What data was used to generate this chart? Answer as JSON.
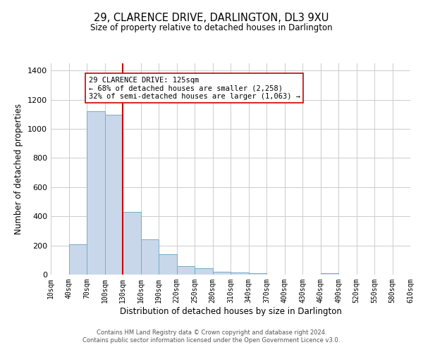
{
  "title": "29, CLARENCE DRIVE, DARLINGTON, DL3 9XU",
  "subtitle": "Size of property relative to detached houses in Darlington",
  "xlabel": "Distribution of detached houses by size in Darlington",
  "ylabel": "Number of detached properties",
  "bar_color": "#c8d8ea",
  "bar_edge_color": "#7aaac8",
  "bin_starts": [
    10,
    40,
    70,
    100,
    130,
    160,
    190,
    220,
    250,
    280,
    310,
    340,
    370,
    400,
    430,
    460,
    490,
    520,
    550,
    580
  ],
  "bin_width": 30,
  "bar_heights": [
    0,
    210,
    1120,
    1095,
    430,
    240,
    140,
    60,
    45,
    20,
    15,
    10,
    0,
    0,
    0,
    8,
    0,
    0,
    0,
    0
  ],
  "vline_x": 130,
  "vline_color": "#cc0000",
  "annotation_text": "29 CLARENCE DRIVE: 125sqm\n← 68% of detached houses are smaller (2,258)\n32% of semi-detached houses are larger (1,063) →",
  "annotation_box_color": "#ffffff",
  "annotation_box_edge_color": "#cc0000",
  "ylim": [
    0,
    1450
  ],
  "yticks": [
    0,
    200,
    400,
    600,
    800,
    1000,
    1200,
    1400
  ],
  "tick_labels": [
    "10sqm",
    "40sqm",
    "70sqm",
    "100sqm",
    "130sqm",
    "160sqm",
    "190sqm",
    "220sqm",
    "250sqm",
    "280sqm",
    "310sqm",
    "340sqm",
    "370sqm",
    "400sqm",
    "430sqm",
    "460sqm",
    "490sqm",
    "520sqm",
    "550sqm",
    "580sqm",
    "610sqm"
  ],
  "footer_line1": "Contains HM Land Registry data © Crown copyright and database right 2024.",
  "footer_line2": "Contains public sector information licensed under the Open Government Licence v3.0."
}
